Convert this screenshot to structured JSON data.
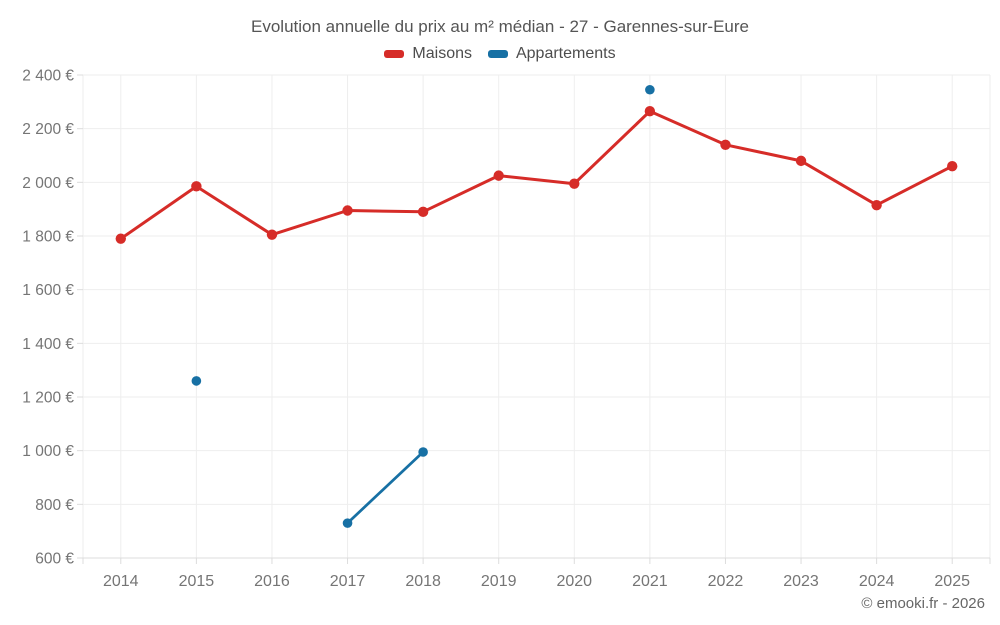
{
  "page": {
    "background": "#ffffff"
  },
  "chart_data": {
    "type": "line",
    "title": "Evolution annuelle du prix au m² médian - 27 - Garennes-sur-Eure",
    "categories": [
      "2014",
      "2015",
      "2016",
      "2017",
      "2018",
      "2019",
      "2020",
      "2021",
      "2022",
      "2023",
      "2024",
      "2025"
    ],
    "series": [
      {
        "name": "Maisons",
        "color": "#d62c28",
        "values": [
          1790,
          1985,
          1805,
          1895,
          1890,
          2025,
          1995,
          2265,
          2140,
          2080,
          1915,
          2060
        ]
      },
      {
        "name": "Appartements",
        "color": "#1770a4",
        "values": [
          null,
          1260,
          null,
          730,
          995,
          null,
          null,
          2345,
          null,
          null,
          null,
          null
        ]
      }
    ],
    "xlabel": "",
    "ylabel": "",
    "ylim": [
      600,
      2400
    ],
    "ytick_step": 200,
    "yticks": [
      600,
      800,
      1000,
      1200,
      1400,
      1600,
      1800,
      2000,
      2200,
      2400
    ],
    "ytick_labels": [
      "600 €",
      "800 €",
      "1 000 €",
      "1 200 €",
      "1 400 €",
      "1 600 €",
      "1 800 €",
      "2 000 €",
      "2 200 €",
      "2 400 €"
    ],
    "grid": true,
    "legend_position": "top-center",
    "footer": "© emooki.fr - 2026",
    "colors": {
      "grid": "#eeeeee",
      "axis": "#dcdcdc",
      "tick_text": "#757575",
      "title_text": "#555555",
      "legend_text": "#4d4d4d",
      "footer_text": "#666666",
      "background": "#ffffff"
    }
  }
}
